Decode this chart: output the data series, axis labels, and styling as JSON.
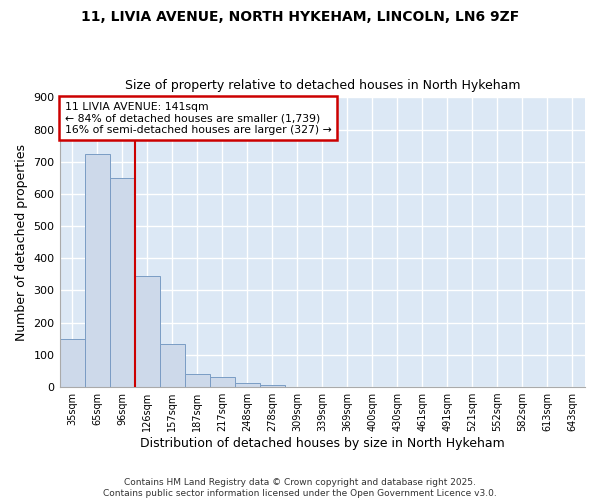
{
  "title_line1": "11, LIVIA AVENUE, NORTH HYKEHAM, LINCOLN, LN6 9ZF",
  "title_line2": "Size of property relative to detached houses in North Hykeham",
  "xlabel": "Distribution of detached houses by size in North Hykeham",
  "ylabel": "Number of detached properties",
  "bin_labels": [
    "35sqm",
    "65sqm",
    "96sqm",
    "126sqm",
    "157sqm",
    "187sqm",
    "217sqm",
    "248sqm",
    "278sqm",
    "309sqm",
    "339sqm",
    "369sqm",
    "400sqm",
    "430sqm",
    "461sqm",
    "491sqm",
    "521sqm",
    "552sqm",
    "582sqm",
    "613sqm",
    "643sqm"
  ],
  "bar_values": [
    150,
    725,
    650,
    345,
    133,
    42,
    30,
    12,
    7,
    0,
    0,
    0,
    0,
    0,
    0,
    0,
    0,
    0,
    0,
    0,
    0
  ],
  "bar_color": "#cdd9ea",
  "bar_edge_color": "#7a9cc4",
  "vline_x_idx": 2.5,
  "vline_color": "#cc0000",
  "annotation_text": "11 LIVIA AVENUE: 141sqm\n← 84% of detached houses are smaller (1,739)\n16% of semi-detached houses are larger (327) →",
  "annotation_box_color": "#ffffff",
  "annotation_box_edge_color": "#cc0000",
  "figure_bg": "#ffffff",
  "plot_bg": "#dce8f5",
  "grid_color": "#ffffff",
  "footer_text": "Contains HM Land Registry data © Crown copyright and database right 2025.\nContains public sector information licensed under the Open Government Licence v3.0.",
  "ylim": [
    0,
    900
  ],
  "yticks": [
    0,
    100,
    200,
    300,
    400,
    500,
    600,
    700,
    800,
    900
  ]
}
